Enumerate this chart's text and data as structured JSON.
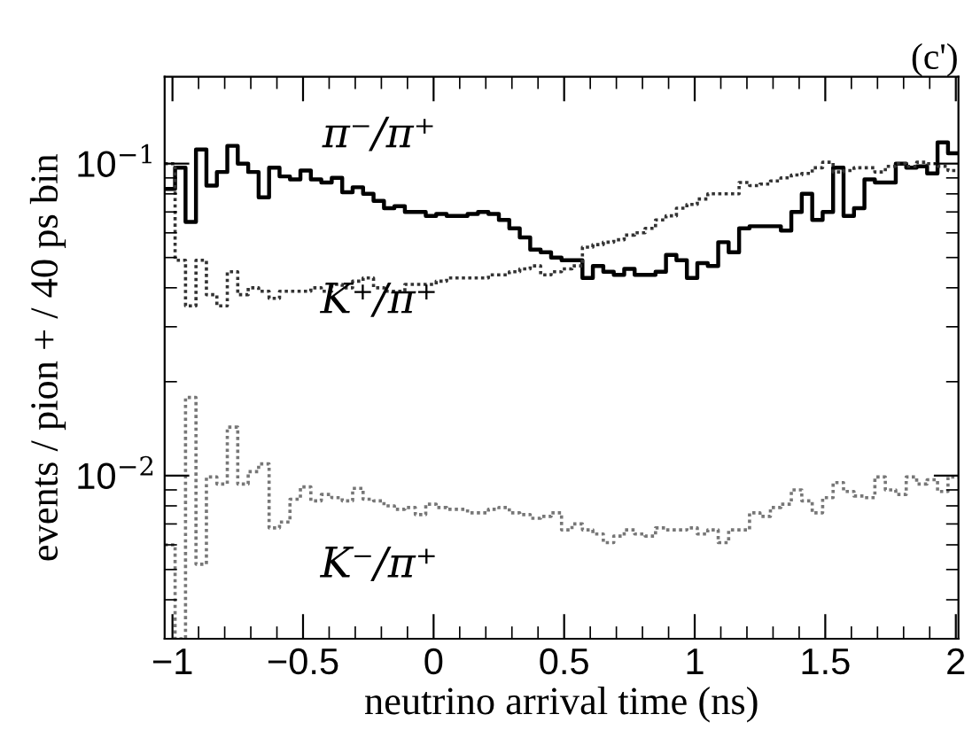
{
  "chart_data": {
    "type": "histogram",
    "title": "(c')",
    "xlabel": "neutrino arrival time (ns)",
    "ylabel": "events / pion + / 40 ps bin",
    "log": "y",
    "bins": [
      -1.03,
      -0.99,
      -0.95,
      -0.91,
      -0.87,
      -0.83,
      -0.79,
      -0.75,
      -0.71,
      -0.67,
      -0.63,
      -0.59,
      -0.55,
      -0.51,
      -0.47,
      -0.43,
      -0.39,
      -0.35,
      -0.31,
      -0.27,
      -0.23,
      -0.19,
      -0.15,
      -0.11,
      -0.07,
      -0.03,
      0.01,
      0.05,
      0.09,
      0.13,
      0.17,
      0.21,
      0.25,
      0.29,
      0.33,
      0.37,
      0.41,
      0.45,
      0.49,
      0.53,
      0.57,
      0.61,
      0.65,
      0.69,
      0.73,
      0.77,
      0.81,
      0.85,
      0.89,
      0.93,
      0.97,
      1.01,
      1.05,
      1.09,
      1.13,
      1.17,
      1.21,
      1.25,
      1.29,
      1.33,
      1.37,
      1.41,
      1.45,
      1.49,
      1.53,
      1.57,
      1.61,
      1.65,
      1.69,
      1.73,
      1.77,
      1.81,
      1.85,
      1.89,
      1.93,
      1.97,
      2.01
    ],
    "series": [
      {
        "name": "π⁻/π⁺",
        "color": "#000000",
        "line_style": "solid",
        "values": [
          0.083,
          0.097,
          0.065,
          0.111,
          0.085,
          0.094,
          0.114,
          0.1,
          0.094,
          0.078,
          0.097,
          0.091,
          0.089,
          0.095,
          0.089,
          0.087,
          0.09,
          0.081,
          0.084,
          0.08,
          0.076,
          0.072,
          0.073,
          0.07,
          0.07,
          0.068,
          0.069,
          0.068,
          0.068,
          0.069,
          0.07,
          0.069,
          0.066,
          0.062,
          0.058,
          0.053,
          0.052,
          0.05,
          0.049,
          0.049,
          0.043,
          0.047,
          0.045,
          0.044,
          0.046,
          0.044,
          0.044,
          0.045,
          0.051,
          0.049,
          0.043,
          0.048,
          0.047,
          0.056,
          0.052,
          0.062,
          0.063,
          0.063,
          0.063,
          0.061,
          0.07,
          0.08,
          0.066,
          0.07,
          0.097,
          0.068,
          0.072,
          0.089,
          0.087,
          0.087,
          0.1,
          0.097,
          0.098,
          0.093,
          0.117,
          0.108
        ]
      },
      {
        "name": "K⁺/π⁺",
        "color": "#333333",
        "line_style": "dotted",
        "values": [
          0.1,
          0.049,
          0.035,
          0.049,
          0.038,
          0.035,
          0.045,
          0.038,
          0.04,
          0.039,
          0.037,
          0.039,
          0.039,
          0.039,
          0.04,
          0.039,
          0.041,
          0.04,
          0.042,
          0.043,
          0.04,
          0.039,
          0.039,
          0.041,
          0.041,
          0.041,
          0.042,
          0.043,
          0.043,
          0.043,
          0.043,
          0.044,
          0.044,
          0.045,
          0.046,
          0.047,
          0.044,
          0.045,
          0.046,
          0.047,
          0.054,
          0.055,
          0.056,
          0.057,
          0.059,
          0.06,
          0.062,
          0.066,
          0.068,
          0.072,
          0.074,
          0.077,
          0.08,
          0.08,
          0.08,
          0.087,
          0.085,
          0.086,
          0.088,
          0.09,
          0.092,
          0.093,
          0.097,
          0.101,
          0.094,
          0.095,
          0.097,
          0.097,
          0.094,
          0.098,
          0.1,
          0.098,
          0.101,
          0.1,
          0.098,
          0.095
        ]
      },
      {
        "name": "K⁻/π⁺",
        "color": "#777777",
        "line_style": "dotted",
        "values": [
          0.006,
          0.003,
          0.0178,
          0.0052,
          0.0099,
          0.0094,
          0.0143,
          0.0094,
          0.0103,
          0.0109,
          0.0068,
          0.0071,
          0.0084,
          0.0092,
          0.0083,
          0.0087,
          0.0085,
          0.0083,
          0.0091,
          0.0084,
          0.0083,
          0.008,
          0.0078,
          0.0079,
          0.0075,
          0.0081,
          0.0079,
          0.0078,
          0.0078,
          0.0076,
          0.0076,
          0.0078,
          0.0079,
          0.0076,
          0.0075,
          0.0073,
          0.0074,
          0.0076,
          0.0067,
          0.007,
          0.0067,
          0.0065,
          0.0061,
          0.0064,
          0.0067,
          0.0065,
          0.0064,
          0.0068,
          0.0067,
          0.0067,
          0.0068,
          0.0065,
          0.0067,
          0.0061,
          0.0067,
          0.0067,
          0.0076,
          0.0074,
          0.0079,
          0.0081,
          0.009,
          0.0083,
          0.0076,
          0.0085,
          0.0095,
          0.0089,
          0.0086,
          0.0085,
          0.0099,
          0.009,
          0.0087,
          0.0099,
          0.0094,
          0.0097,
          0.0089,
          0.0099
        ]
      }
    ],
    "xlim": [
      -1.03,
      2.01
    ],
    "ylim": [
      0.003,
      0.19
    ],
    "xticks": [
      {
        "value": -1,
        "label": "−1"
      },
      {
        "value": -0.5,
        "label": "−0.5"
      },
      0,
      0.5,
      1,
      1.5,
      2
    ],
    "yticks": [
      {
        "value": 0.01,
        "label": "10$^{−2}$"
      },
      {
        "value": 0.1,
        "label": "10$^{−1}$"
      }
    ],
    "grid": false
  }
}
